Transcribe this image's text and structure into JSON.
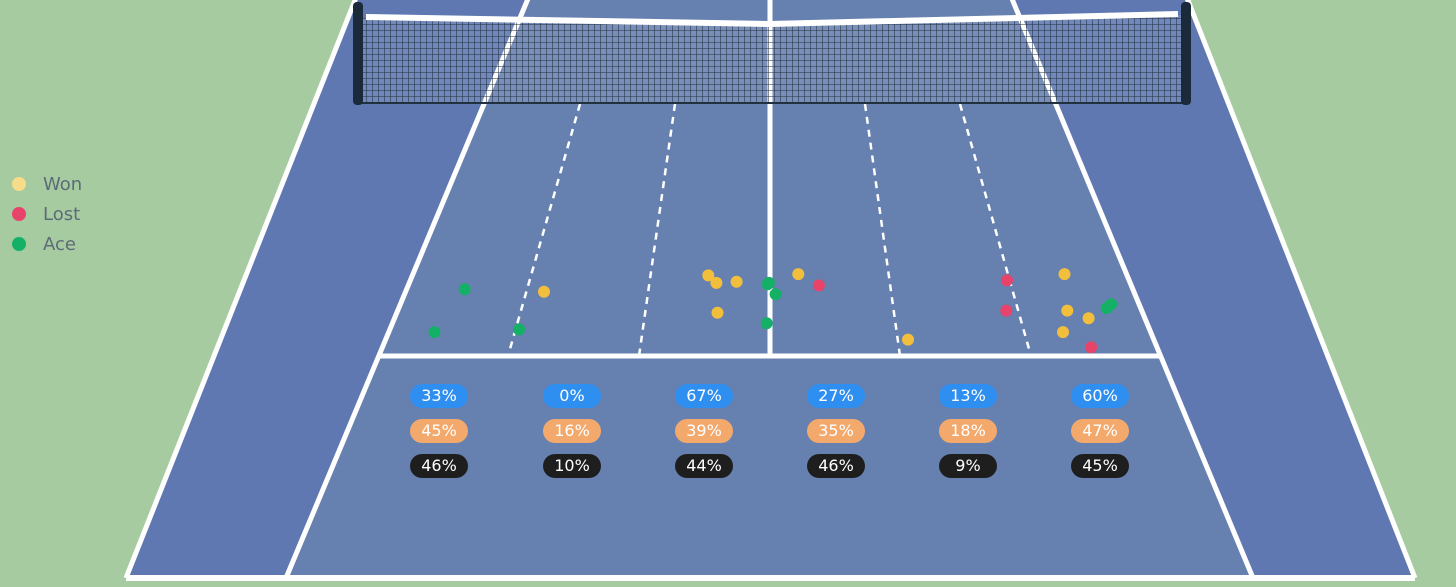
{
  "legend": [
    {
      "label": "Won",
      "color": "#f8dc8a"
    },
    {
      "label": "Lost",
      "color": "#e8436a"
    },
    {
      "label": "Ace",
      "color": "#14b066"
    }
  ],
  "colors": {
    "background": "#a7cba1",
    "court_outer": "#5f78b1",
    "court_inner": "#6680b0",
    "line": "#ffffff",
    "net_post": "#1b2a3a",
    "won_marker": "#f2bf3c",
    "lost_marker": "#e8436a",
    "ace_marker": "#14b066",
    "row1_pill": "#2f8ff0",
    "row2_pill": "#f4a96c",
    "row3_pill": "#1e1e1e"
  },
  "chart_data": {
    "type": "scatter",
    "description_free": true,
    "zones": [
      {
        "row1": "33%",
        "row2": "45%",
        "row3": "46%"
      },
      {
        "row1": "0%",
        "row2": "16%",
        "row3": "10%"
      },
      {
        "row1": "67%",
        "row2": "39%",
        "row3": "44%"
      },
      {
        "row1": "27%",
        "row2": "35%",
        "row3": "46%"
      },
      {
        "row1": "13%",
        "row2": "18%",
        "row3": "9%"
      },
      {
        "row1": "60%",
        "row2": "47%",
        "row3": "45%"
      }
    ],
    "court_coordinate_note": "x: 0 = left singles line, 1 = right singles line; y: 0 = net, 1 = service line",
    "serves": [
      {
        "x": 0.08,
        "y": 0.735,
        "result": "Ace"
      },
      {
        "x": 0.06,
        "y": 0.905,
        "result": "Ace"
      },
      {
        "x": 0.17,
        "y": 0.895,
        "result": "Ace"
      },
      {
        "x": 0.19,
        "y": 0.745,
        "result": "Won"
      },
      {
        "x": 0.414,
        "y": 0.68,
        "result": "Won"
      },
      {
        "x": 0.426,
        "y": 0.71,
        "result": "Won"
      },
      {
        "x": 0.454,
        "y": 0.705,
        "result": "Won"
      },
      {
        "x": 0.43,
        "y": 0.828,
        "result": "Won"
      },
      {
        "x": 0.499,
        "y": 0.71,
        "result": "Ace"
      },
      {
        "x": 0.497,
        "y": 0.715,
        "result": "Ace"
      },
      {
        "x": 0.508,
        "y": 0.755,
        "result": "Ace"
      },
      {
        "x": 0.496,
        "y": 0.87,
        "result": "Ace"
      },
      {
        "x": 0.54,
        "y": 0.675,
        "result": "Won"
      },
      {
        "x": 0.568,
        "y": 0.72,
        "result": "Lost"
      },
      {
        "x": 0.68,
        "y": 0.935,
        "result": "Won"
      },
      {
        "x": 0.83,
        "y": 0.7,
        "result": "Lost"
      },
      {
        "x": 0.818,
        "y": 0.82,
        "result": "Lost"
      },
      {
        "x": 0.885,
        "y": 0.905,
        "result": "Won"
      },
      {
        "x": 0.913,
        "y": 0.675,
        "result": "Won"
      },
      {
        "x": 0.9,
        "y": 0.82,
        "result": "Won"
      },
      {
        "x": 0.925,
        "y": 0.85,
        "result": "Won"
      },
      {
        "x": 0.954,
        "y": 0.81,
        "result": "Ace"
      },
      {
        "x": 0.962,
        "y": 0.795,
        "result": "Ace"
      },
      {
        "x": 0.915,
        "y": 0.965,
        "result": "Lost"
      }
    ]
  }
}
